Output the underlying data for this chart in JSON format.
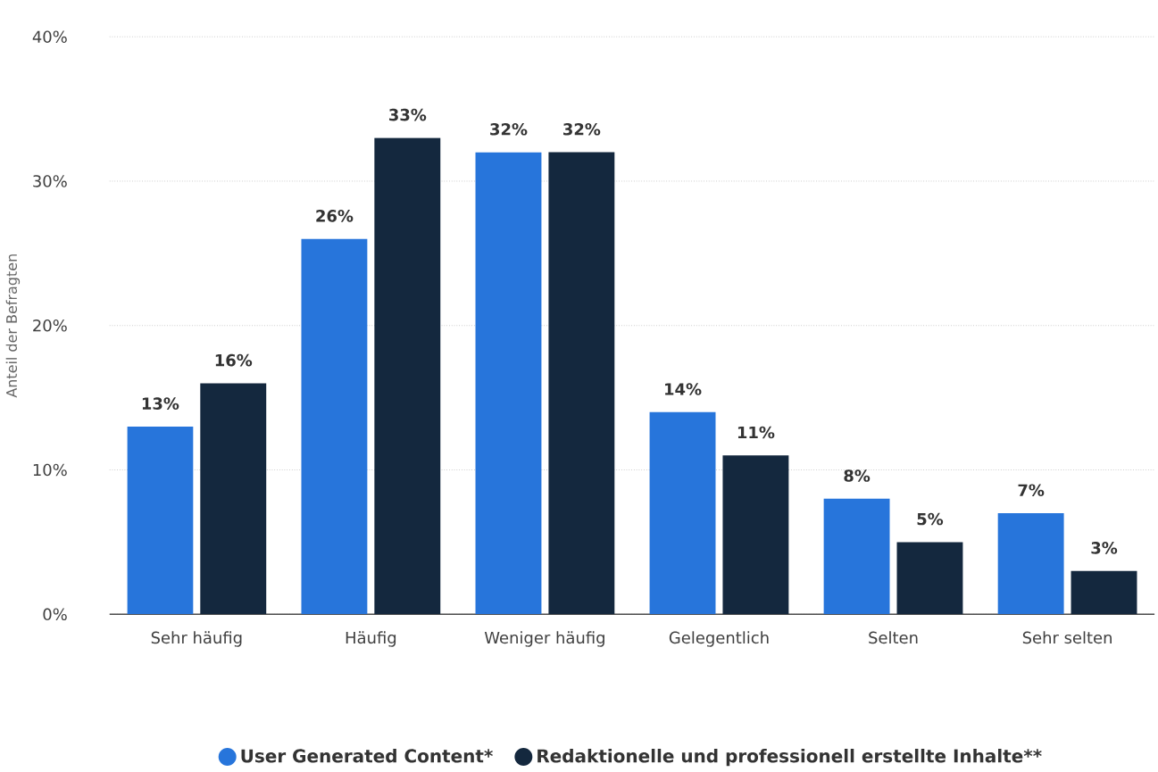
{
  "chart_data": {
    "type": "bar",
    "ylabel": "Anteil der Befragten",
    "categories": [
      "Sehr häufig",
      "Häufig",
      "Weniger häufig",
      "Gelegentlich",
      "Selten",
      "Sehr selten"
    ],
    "series": [
      {
        "name": "User Generated Content*",
        "color": "#2775db",
        "values": [
          13,
          26,
          32,
          14,
          8,
          7
        ],
        "value_labels": [
          "13%",
          "26%",
          "32%",
          "14%",
          "8%",
          "7%"
        ]
      },
      {
        "name": "Redaktionelle und professionell erstellte Inhalte**",
        "color": "#14283e",
        "values": [
          16,
          33,
          32,
          11,
          5,
          3
        ],
        "value_labels": [
          "16%",
          "33%",
          "32%",
          "11%",
          "5%",
          "3%"
        ]
      }
    ],
    "ylim": [
      0,
      40
    ],
    "yticks": [
      {
        "value": 0,
        "label": "0%"
      },
      {
        "value": 10,
        "label": "10%"
      },
      {
        "value": 20,
        "label": "20%"
      },
      {
        "value": 30,
        "label": "30%"
      },
      {
        "value": 40,
        "label": "40%"
      }
    ],
    "grid": "y",
    "legend": "bottom"
  }
}
